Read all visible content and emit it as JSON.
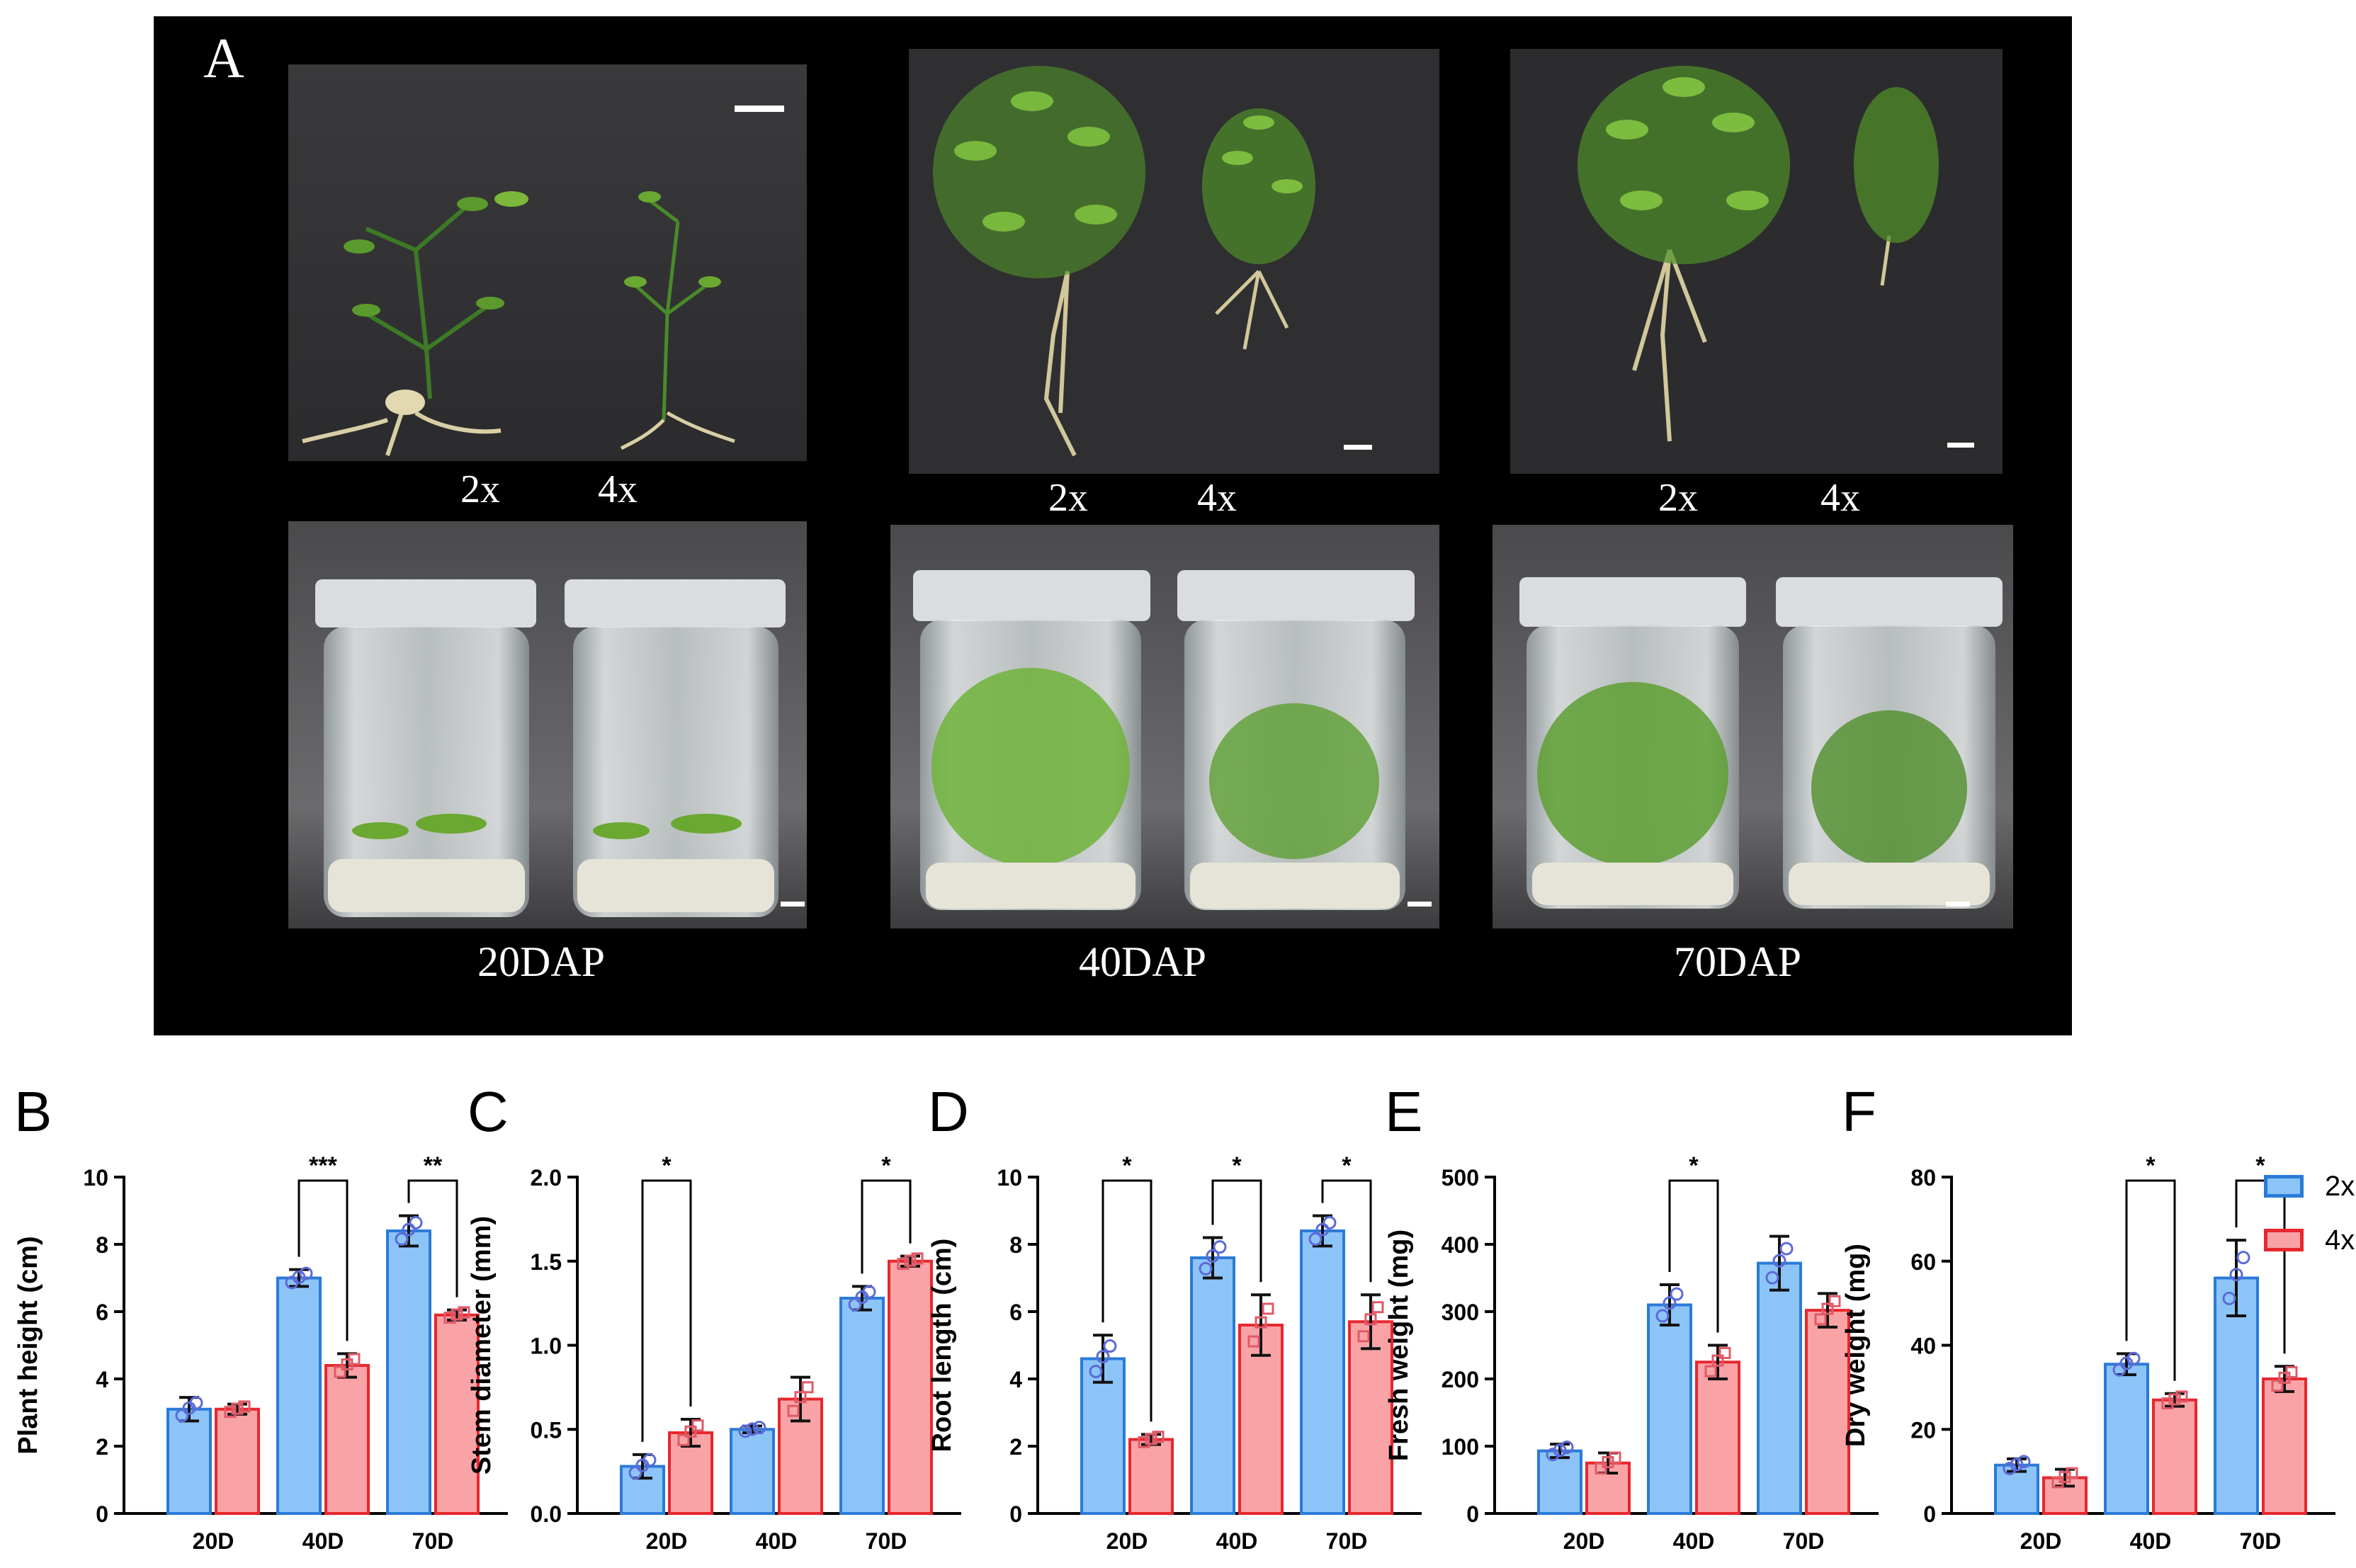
{
  "panel_a": {
    "letter": "A",
    "ploidy_labels": [
      "2x",
      "4x"
    ],
    "stage_labels": [
      "20DAP",
      "40DAP",
      "70DAP"
    ]
  },
  "legend": [
    {
      "name": "2x",
      "color": "#5aaaf5"
    },
    {
      "name": "4x",
      "color": "#f7868a"
    }
  ],
  "colors": {
    "fill_2x": "#8cc4f8",
    "edge_2x": "#2a7bd8",
    "fill_4x": "#f9a3a6",
    "edge_4x": "#e8272e",
    "photo_bg": "#000000"
  },
  "chart_data": [
    {
      "type": "bar",
      "letter": "B",
      "title": "",
      "ylabel": "Plant height (cm)",
      "categories": [
        "20D",
        "40D",
        "70D"
      ],
      "ylim": [
        0,
        10
      ],
      "yticks": [
        0,
        2,
        4,
        6,
        8,
        10
      ],
      "series": [
        {
          "name": "2x",
          "values": [
            3.1,
            7.0,
            8.4
          ],
          "errors": [
            0.35,
            0.25,
            0.45
          ]
        },
        {
          "name": "4x",
          "values": [
            3.1,
            4.4,
            5.9
          ],
          "errors": [
            0.15,
            0.35,
            0.15
          ]
        }
      ],
      "annotations": [
        {
          "category": 1,
          "text": "***"
        },
        {
          "category": 2,
          "text": "**"
        }
      ]
    },
    {
      "type": "bar",
      "letter": "C",
      "title": "",
      "ylabel": "Stem diameter (mm)",
      "categories": [
        "20D",
        "40D",
        "70D"
      ],
      "ylim": [
        0,
        2.0
      ],
      "yticks": [
        "0.0",
        "0.5",
        "1.0",
        "1.5",
        "2.0"
      ],
      "series": [
        {
          "name": "2x",
          "values": [
            0.28,
            0.5,
            1.28
          ],
          "errors": [
            0.07,
            0.02,
            0.07
          ]
        },
        {
          "name": "4x",
          "values": [
            0.48,
            0.68,
            1.5
          ],
          "errors": [
            0.08,
            0.13,
            0.03
          ]
        }
      ],
      "annotations": [
        {
          "category": 0,
          "text": "*"
        },
        {
          "category": 2,
          "text": "*"
        }
      ]
    },
    {
      "type": "bar",
      "letter": "D",
      "title": "",
      "ylabel": "Root length (cm)",
      "categories": [
        "20D",
        "40D",
        "70D"
      ],
      "ylim": [
        0,
        10
      ],
      "yticks": [
        0,
        2,
        4,
        6,
        8,
        10
      ],
      "series": [
        {
          "name": "2x",
          "values": [
            4.6,
            7.6,
            8.4
          ],
          "errors": [
            0.7,
            0.6,
            0.45
          ]
        },
        {
          "name": "4x",
          "values": [
            2.2,
            5.6,
            5.7
          ],
          "errors": [
            0.15,
            0.9,
            0.8
          ]
        }
      ],
      "annotations": [
        {
          "category": 0,
          "text": "*"
        },
        {
          "category": 1,
          "text": "*"
        },
        {
          "category": 2,
          "text": "*"
        }
      ]
    },
    {
      "type": "bar",
      "letter": "E",
      "title": "",
      "ylabel": "Fresh weight (mg)",
      "categories": [
        "20D",
        "40D",
        "70D"
      ],
      "ylim": [
        0,
        500
      ],
      "yticks": [
        0,
        100,
        200,
        300,
        400,
        500
      ],
      "series": [
        {
          "name": "2x",
          "values": [
            93,
            310,
            372
          ],
          "errors": [
            10,
            30,
            40
          ]
        },
        {
          "name": "4x",
          "values": [
            75,
            225,
            302
          ],
          "errors": [
            15,
            25,
            25
          ]
        }
      ],
      "annotations": [
        {
          "category": 1,
          "text": "*"
        }
      ]
    },
    {
      "type": "bar",
      "letter": "F",
      "title": "",
      "ylabel": "Dry weight (mg)",
      "categories": [
        "20D",
        "40D",
        "70D"
      ],
      "ylim": [
        0,
        80
      ],
      "yticks": [
        0,
        20,
        40,
        60,
        80
      ],
      "series": [
        {
          "name": "2x",
          "values": [
            11.5,
            35.5,
            56
          ],
          "errors": [
            1.5,
            2.5,
            9
          ]
        },
        {
          "name": "4x",
          "values": [
            8.5,
            27,
            32
          ],
          "errors": [
            2,
            1.5,
            3
          ]
        }
      ],
      "annotations": [
        {
          "category": 1,
          "text": "*"
        },
        {
          "category": 2,
          "text": "*"
        }
      ]
    }
  ]
}
